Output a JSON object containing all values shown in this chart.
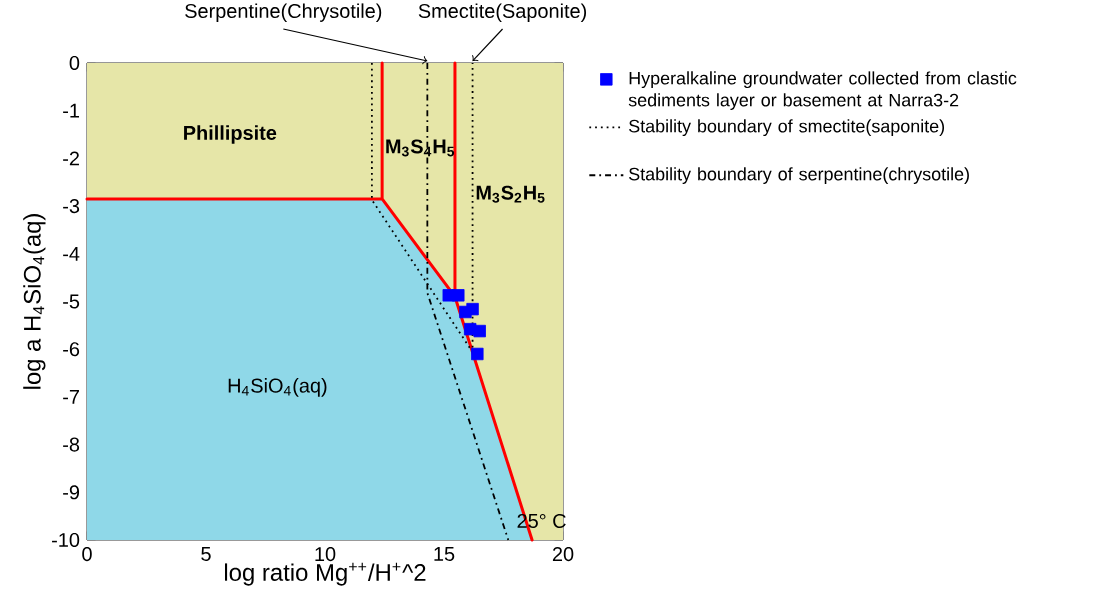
{
  "chart_data": {
    "type": "line",
    "xlabel": "log ratio Mg$^{++}$/H$^{+}$^2",
    "ylabel": "log a H$_{4}$SiO$_{4}$(aq)",
    "xlim": [
      0,
      20
    ],
    "ylim": [
      -10,
      0
    ],
    "xticks": [
      0,
      5,
      10,
      15,
      20
    ],
    "yticks": [
      -10,
      -9,
      -8,
      -7,
      -6,
      -5,
      -4,
      -3,
      -2,
      -1,
      0
    ],
    "legend": "right",
    "series": [
      {
        "type": "area",
        "color": "#e6e6a8",
        "x": [
          0,
          0,
          12.4,
          15.46,
          18.7,
          20,
          20
        ],
        "values": [
          0,
          -2.85,
          -2.85,
          -4.9,
          -10,
          -10,
          0
        ]
      },
      {
        "type": "area",
        "color": "#8fd8e8",
        "x": [
          0,
          0,
          12.4,
          15.46,
          18.7
        ],
        "values": [
          -10,
          -2.85,
          -2.85,
          -4.9,
          -10
        ]
      },
      {
        "color": "#ff0000",
        "line_style": "solid",
        "x": [
          0,
          12.4,
          12.4,
          12.4,
          15.46,
          15.46,
          15.46,
          18.7
        ],
        "values": [
          -2.85,
          -2.85,
          0,
          -2.85,
          -4.9,
          0,
          -4.9,
          -10
        ]
      },
      {
        "type": "scatter",
        "name": "Hyperalkaline groundwater collected from clastic sediments layer or basement at Narra3-2",
        "color": "#0000ff",
        "marker": "square",
        "x": [
          15.2,
          15.6,
          15.9,
          16.2,
          16.1,
          16.5,
          16.4
        ],
        "values": [
          -4.87,
          -4.87,
          -5.22,
          -5.16,
          -5.58,
          -5.62,
          -6.1
        ]
      },
      {
        "name": "Stability boundary of smectite(saponite)",
        "color": "#000000",
        "line_style": "dotted",
        "x": [
          11.97,
          11.97,
          16.2,
          16.2
        ],
        "values": [
          0,
          -2.87,
          -6.06,
          0
        ]
      },
      {
        "name": "Stability boundary of serpentine(chrysotile)",
        "color": "#000000",
        "line_style": "dashdot",
        "x": [
          14.3,
          14.3,
          17.7
        ],
        "values": [
          0,
          -4.82,
          -10
        ]
      }
    ],
    "annotations": [
      "Phillipsite",
      "M$_{3}$S$_{4}$H$_{5}$",
      "M$_{3}$S$_{2}$H$_{5}$",
      "H$_{4}$SiO$_{4}$(aq)",
      "25° C",
      {
        "text": "Serpentine(Chrysotile)",
        "x": 14.3,
        "y": 0
      },
      {
        "text": "Smectite(Saponite)",
        "x": 16.2,
        "y": 0
      }
    ]
  }
}
